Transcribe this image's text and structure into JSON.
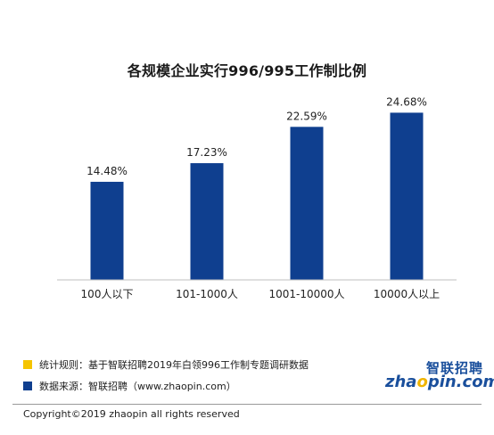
{
  "chart_data": {
    "type": "bar",
    "title": "各规模企业实行996/995工作制比例",
    "categories": [
      "100人以下",
      "101-1000人",
      "1001-10000人",
      "10000人以上"
    ],
    "values": [
      14.48,
      17.23,
      22.59,
      24.68
    ],
    "value_labels": [
      "14.48%",
      "17.23%",
      "22.59%",
      "24.68%"
    ],
    "ylim": [
      0,
      30
    ],
    "grid": false,
    "bar_color": "#0f3f8f"
  },
  "notes": [
    {
      "text": "统计规则：基于智联招聘2019年白领996工作制专题调研数据",
      "color": "#f5c400"
    },
    {
      "text": "数据来源：智联招聘（www.zhaopin.com）",
      "color": "#0f3f8f"
    }
  ],
  "logo": {
    "top": "智联招聘",
    "bottom_pre": "zha",
    "bottom_dot": "o",
    "bottom_post": "pin.com"
  },
  "copyright": "Copyright©2019 zhaopin all rights reserved"
}
